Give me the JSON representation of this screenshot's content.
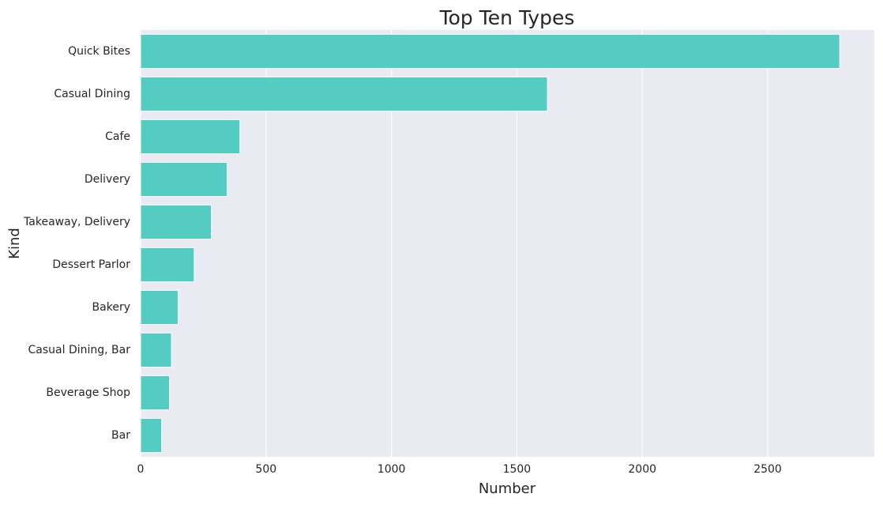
{
  "chart_data": {
    "type": "bar",
    "orientation": "horizontal",
    "title": "Top Ten Types",
    "xlabel": "Number",
    "ylabel": "Kind",
    "categories": [
      "Quick Bites",
      "Casual Dining",
      "Cafe",
      "Delivery",
      "Takeaway, Delivery",
      "Dessert Parlor",
      "Bakery",
      "Casual Dining, Bar",
      "Beverage Shop",
      "Bar"
    ],
    "values": [
      2787,
      1622,
      396,
      345,
      282,
      214,
      150,
      123,
      115,
      84
    ],
    "xlim": [
      0,
      2925
    ],
    "xticks": [
      0,
      500,
      1000,
      1500,
      2000,
      2500
    ],
    "grid": true,
    "colors": {
      "bar": "#55ccc1",
      "plot_background": "#eaeaf2",
      "grid": "#ffffff",
      "text": "#262626"
    }
  }
}
